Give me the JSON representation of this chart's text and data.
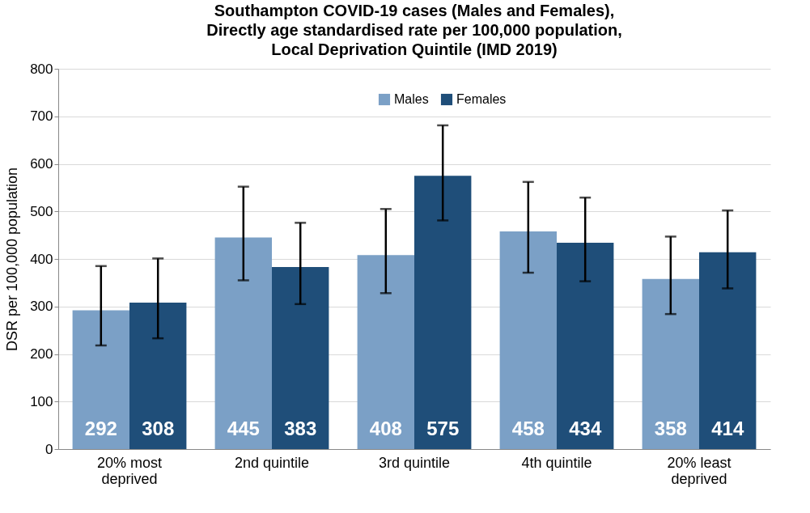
{
  "chart_data": {
    "type": "bar",
    "title": "Southampton COVID-19 cases (Males and Females), Directly age standardised rate per 100,000 population, Local Deprivation Quintile (IMD 2019)",
    "ylabel": "DSR per 100,000 population",
    "categories": [
      "20% most deprived",
      "2nd quintile",
      "3rd quintile",
      "4th quintile",
      "20% least deprived"
    ],
    "series": [
      {
        "name": "Males",
        "color": "#7ba0c6",
        "values": [
          292,
          445,
          408,
          458,
          358
        ],
        "errors": [
          [
            218,
            385
          ],
          [
            355,
            552
          ],
          [
            328,
            505
          ],
          [
            371,
            562
          ],
          [
            284,
            447
          ]
        ]
      },
      {
        "name": "Females",
        "color": "#1f4e79",
        "values": [
          308,
          383,
          575,
          434,
          414
        ],
        "errors": [
          [
            233,
            401
          ],
          [
            305,
            476
          ],
          [
            481,
            681
          ],
          [
            353,
            529
          ],
          [
            338,
            502
          ]
        ]
      }
    ],
    "ylim": [
      0,
      800
    ],
    "yticks": [
      0,
      100,
      200,
      300,
      400,
      500,
      600,
      700,
      800
    ],
    "grid": "y",
    "legend": "top",
    "data_labels": true
  }
}
